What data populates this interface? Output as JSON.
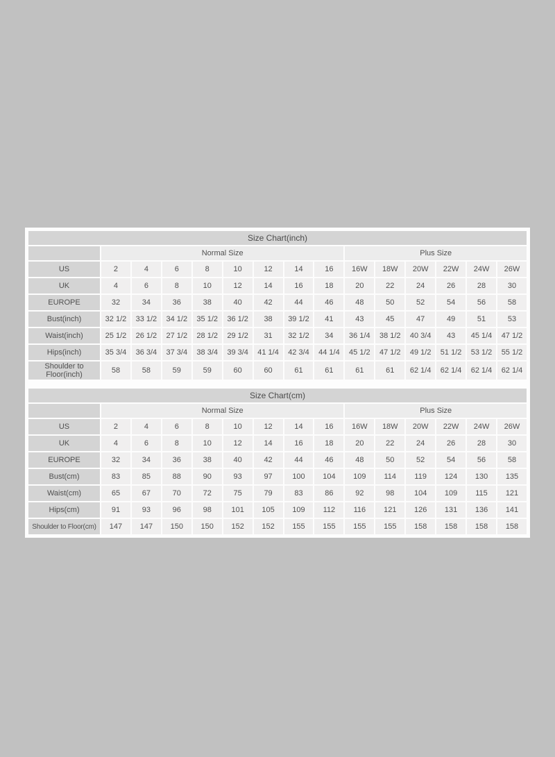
{
  "page": {
    "background_color": "#c1c1c1",
    "panel_color": "#fdfdfd",
    "header_cell_color": "#d4d4d4",
    "group_cell_color": "#ececec",
    "data_cell_color": "#f0efef",
    "text_color": "#4f4f4f"
  },
  "tables": [
    {
      "title": "Size Chart(inch)",
      "group_headers": [
        {
          "label": "Normal Size",
          "span": 8
        },
        {
          "label": "Plus Size",
          "span": 6
        }
      ],
      "rows": [
        {
          "label": "US",
          "values": [
            "2",
            "4",
            "6",
            "8",
            "10",
            "12",
            "14",
            "16",
            "16W",
            "18W",
            "20W",
            "22W",
            "24W",
            "26W"
          ]
        },
        {
          "label": "UK",
          "values": [
            "4",
            "6",
            "8",
            "10",
            "12",
            "14",
            "16",
            "18",
            "20",
            "22",
            "24",
            "26",
            "28",
            "30"
          ]
        },
        {
          "label": "EUROPE",
          "values": [
            "32",
            "34",
            "36",
            "38",
            "40",
            "42",
            "44",
            "46",
            "48",
            "50",
            "52",
            "54",
            "56",
            "58"
          ]
        },
        {
          "label": "Bust(inch)",
          "values": [
            "32 1/2",
            "33 1/2",
            "34 1/2",
            "35 1/2",
            "36 1/2",
            "38",
            "39 1/2",
            "41",
            "43",
            "45",
            "47",
            "49",
            "51",
            "53"
          ]
        },
        {
          "label": "Waist(inch)",
          "values": [
            "25 1/2",
            "26 1/2",
            "27 1/2",
            "28 1/2",
            "29 1/2",
            "31",
            "32 1/2",
            "34",
            "36 1/4",
            "38 1/2",
            "40 3/4",
            "43",
            "45 1/4",
            "47 1/2"
          ]
        },
        {
          "label": "Hips(inch)",
          "values": [
            "35 3/4",
            "36 3/4",
            "37 3/4",
            "38 3/4",
            "39 3/4",
            "41 1/4",
            "42 3/4",
            "44 1/4",
            "45 1/2",
            "47 1/2",
            "49 1/2",
            "51 1/2",
            "53 1/2",
            "55 1/2"
          ]
        },
        {
          "label": "Shoulder to Floor(inch)",
          "values": [
            "58",
            "58",
            "59",
            "59",
            "60",
            "60",
            "61",
            "61",
            "61",
            "61",
            "62 1/4",
            "62 1/4",
            "62 1/4",
            "62 1/4"
          ]
        }
      ]
    },
    {
      "title": "Size Chart(cm)",
      "group_headers": [
        {
          "label": "Normal Size",
          "span": 8
        },
        {
          "label": "Plus Size",
          "span": 6
        }
      ],
      "rows": [
        {
          "label": "US",
          "values": [
            "2",
            "4",
            "6",
            "8",
            "10",
            "12",
            "14",
            "16",
            "16W",
            "18W",
            "20W",
            "22W",
            "24W",
            "26W"
          ]
        },
        {
          "label": "UK",
          "values": [
            "4",
            "6",
            "8",
            "10",
            "12",
            "14",
            "16",
            "18",
            "20",
            "22",
            "24",
            "26",
            "28",
            "30"
          ]
        },
        {
          "label": "EUROPE",
          "values": [
            "32",
            "34",
            "36",
            "38",
            "40",
            "42",
            "44",
            "46",
            "48",
            "50",
            "52",
            "54",
            "56",
            "58"
          ]
        },
        {
          "label": "Bust(cm)",
          "values": [
            "83",
            "85",
            "88",
            "90",
            "93",
            "97",
            "100",
            "104",
            "109",
            "114",
            "119",
            "124",
            "130",
            "135"
          ]
        },
        {
          "label": "Waist(cm)",
          "values": [
            "65",
            "67",
            "70",
            "72",
            "75",
            "79",
            "83",
            "86",
            "92",
            "98",
            "104",
            "109",
            "115",
            "121"
          ]
        },
        {
          "label": "Hips(cm)",
          "values": [
            "91",
            "93",
            "96",
            "98",
            "101",
            "105",
            "109",
            "112",
            "116",
            "121",
            "126",
            "131",
            "136",
            "141"
          ]
        },
        {
          "label": "Shoulder to Floor(cm)",
          "values": [
            "147",
            "147",
            "150",
            "150",
            "152",
            "152",
            "155",
            "155",
            "155",
            "155",
            "158",
            "158",
            "158",
            "158"
          ]
        }
      ]
    }
  ]
}
